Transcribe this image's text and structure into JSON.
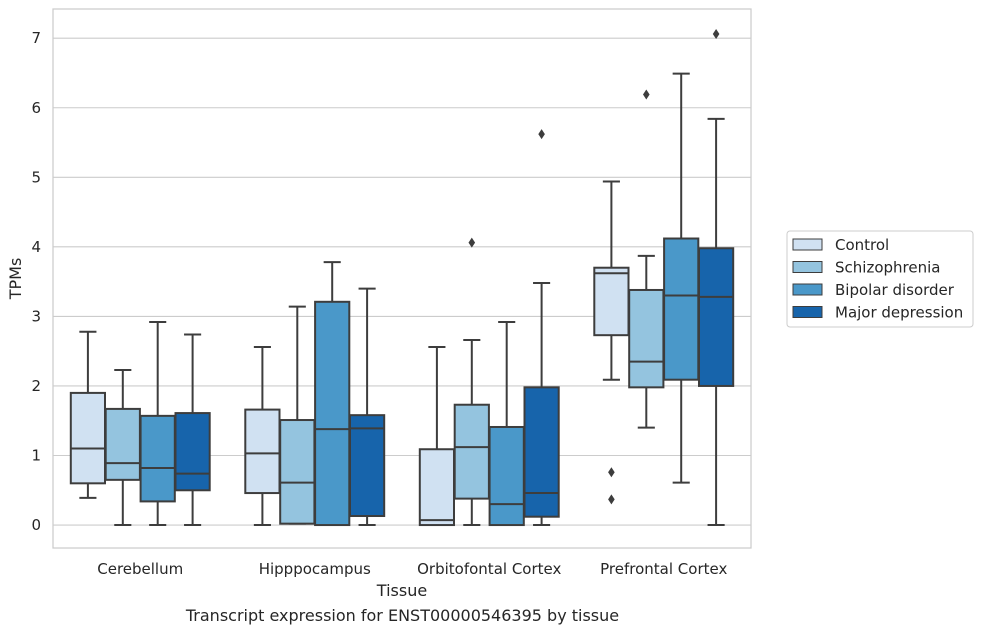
{
  "chart_data": {
    "type": "boxplot",
    "xlabel": "Tissue",
    "ylabel": "TPMs",
    "ylim": [
      -0.33,
      7.42
    ],
    "yticks": [
      0,
      1,
      2,
      3,
      4,
      5,
      6,
      7
    ],
    "grid": "horizontal",
    "legend_position": "right",
    "categories": [
      "Cerebellum",
      "Hipppocampus",
      "Orbitofontal Cortex",
      "Prefrontal Cortex"
    ],
    "series": [
      {
        "name": "Control",
        "color": "#d0e1f2",
        "boxes": [
          {
            "whislo": 0.39,
            "q1": 0.6,
            "med": 1.1,
            "q3": 1.9,
            "whishi": 2.78,
            "fliers": []
          },
          {
            "whislo": 0.0,
            "q1": 0.46,
            "med": 1.03,
            "q3": 1.66,
            "whishi": 2.56,
            "fliers": []
          },
          {
            "whislo": 0.0,
            "q1": 0.0,
            "med": 0.07,
            "q3": 1.09,
            "whishi": 2.56,
            "fliers": []
          },
          {
            "whislo": 2.09,
            "q1": 2.73,
            "med": 3.62,
            "q3": 3.7,
            "whishi": 4.94,
            "fliers": [
              0.76,
              0.37
            ]
          }
        ]
      },
      {
        "name": "Schizophrenia",
        "color": "#94c4df",
        "boxes": [
          {
            "whislo": 0.0,
            "q1": 0.65,
            "med": 0.89,
            "q3": 1.67,
            "whishi": 2.23,
            "fliers": []
          },
          {
            "whislo": 0.02,
            "q1": 0.02,
            "med": 0.61,
            "q3": 1.51,
            "whishi": 3.14,
            "fliers": []
          },
          {
            "whislo": 0.0,
            "q1": 0.38,
            "med": 1.12,
            "q3": 1.73,
            "whishi": 2.66,
            "fliers": [
              4.06
            ]
          },
          {
            "whislo": 1.4,
            "q1": 1.98,
            "med": 2.35,
            "q3": 3.38,
            "whishi": 3.87,
            "fliers": [
              6.19
            ]
          }
        ]
      },
      {
        "name": "Bipolar disorder",
        "color": "#4a98c9",
        "boxes": [
          {
            "whislo": 0.0,
            "q1": 0.34,
            "med": 0.82,
            "q3": 1.57,
            "whishi": 2.92,
            "fliers": []
          },
          {
            "whislo": 0.0,
            "q1": 0.0,
            "med": 1.38,
            "q3": 3.21,
            "whishi": 3.78,
            "fliers": []
          },
          {
            "whislo": 0.0,
            "q1": 0.0,
            "med": 0.3,
            "q3": 1.41,
            "whishi": 2.92,
            "fliers": []
          },
          {
            "whislo": 0.61,
            "q1": 2.09,
            "med": 3.3,
            "q3": 4.12,
            "whishi": 6.49,
            "fliers": []
          }
        ]
      },
      {
        "name": "Major depression",
        "color": "#1764ab",
        "boxes": [
          {
            "whislo": 0.0,
            "q1": 0.5,
            "med": 0.74,
            "q3": 1.61,
            "whishi": 2.74,
            "fliers": []
          },
          {
            "whislo": 0.0,
            "q1": 0.13,
            "med": 1.39,
            "q3": 1.58,
            "whishi": 3.4,
            "fliers": []
          },
          {
            "whislo": 0.0,
            "q1": 0.12,
            "med": 0.46,
            "q3": 1.98,
            "whishi": 3.48,
            "fliers": [
              5.62
            ]
          },
          {
            "whislo": 0.0,
            "q1": 2.0,
            "med": 3.28,
            "q3": 3.98,
            "whishi": 5.84,
            "fliers": [
              7.06
            ]
          }
        ]
      }
    ]
  },
  "caption": "Transcript expression for ENST00000546395 by tissue"
}
